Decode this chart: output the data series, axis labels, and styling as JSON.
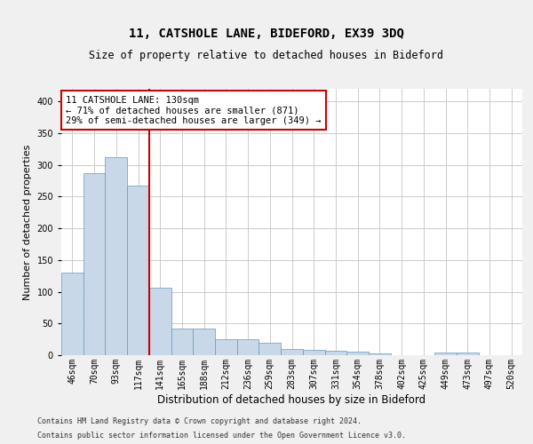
{
  "title1": "11, CATSHOLE LANE, BIDEFORD, EX39 3DQ",
  "title2": "Size of property relative to detached houses in Bideford",
  "xlabel": "Distribution of detached houses by size in Bideford",
  "ylabel": "Number of detached properties",
  "footer1": "Contains HM Land Registry data © Crown copyright and database right 2024.",
  "footer2": "Contains public sector information licensed under the Open Government Licence v3.0.",
  "annotation_line1": "11 CATSHOLE LANE: 130sqm",
  "annotation_line2": "← 71% of detached houses are smaller (871)",
  "annotation_line3": "29% of semi-detached houses are larger (349) →",
  "bar_color": "#c8d8e8",
  "bar_edge_color": "#6699bb",
  "vline_color": "#cc0000",
  "annotation_box_edge": "#cc0000",
  "categories": [
    "46sqm",
    "70sqm",
    "93sqm",
    "117sqm",
    "141sqm",
    "165sqm",
    "188sqm",
    "212sqm",
    "236sqm",
    "259sqm",
    "283sqm",
    "307sqm",
    "331sqm",
    "354sqm",
    "378sqm",
    "402sqm",
    "425sqm",
    "449sqm",
    "473sqm",
    "497sqm",
    "520sqm"
  ],
  "values": [
    130,
    287,
    312,
    267,
    106,
    42,
    42,
    25,
    25,
    20,
    10,
    8,
    7,
    5,
    3,
    0,
    0,
    4,
    4,
    0,
    0
  ],
  "vline_x": 3.5,
  "ylim": [
    0,
    420
  ],
  "yticks": [
    0,
    50,
    100,
    150,
    200,
    250,
    300,
    350,
    400
  ],
  "background_color": "#f0f0f0",
  "plot_background": "#ffffff",
  "grid_color": "#cccccc",
  "title1_fontsize": 10,
  "title2_fontsize": 8.5,
  "ylabel_fontsize": 8,
  "xlabel_fontsize": 8.5,
  "tick_fontsize": 7,
  "footer_fontsize": 6,
  "ann_fontsize": 7.5
}
